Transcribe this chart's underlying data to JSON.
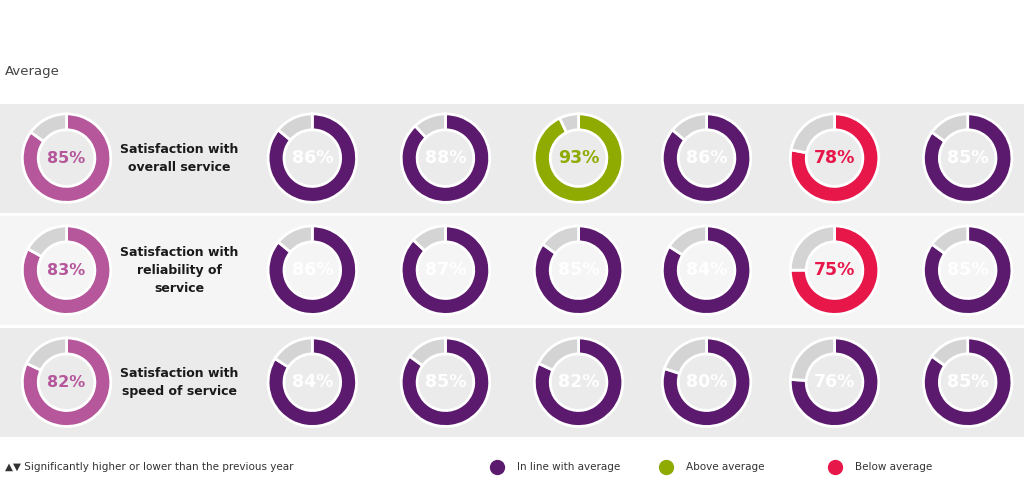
{
  "background_color": "#ffffff",
  "row_bg_colors": [
    "#ebebeb",
    "#f5f5f5",
    "#ebebeb"
  ],
  "row_labels": [
    "Satisfaction with\noverall service",
    "Satisfaction with\nreliability of\nservice",
    "Satisfaction with\nspeed of service"
  ],
  "data": [
    [
      85,
      86,
      88,
      93,
      86,
      78,
      85
    ],
    [
      83,
      86,
      87,
      85,
      84,
      75,
      85
    ],
    [
      82,
      84,
      85,
      82,
      80,
      76,
      85
    ]
  ],
  "colors": {
    "average_ring": "#b5579a",
    "average_text": "#b5579a",
    "inline": "#5b1a6e",
    "inline_text": "#ffffff",
    "above": "#8faa00",
    "above_text": "#8faa00",
    "below": "#e8174a",
    "below_text": "#e8174a",
    "remainder": "#d4d4d4"
  },
  "status": [
    [
      "average",
      "inline",
      "inline",
      "above",
      "inline",
      "below",
      "inline"
    ],
    [
      "average",
      "inline",
      "inline",
      "inline",
      "inline",
      "below",
      "inline"
    ],
    [
      "average",
      "inline",
      "inline",
      "inline",
      "inline",
      "inline",
      "inline"
    ]
  ],
  "legend_arrow_text": "▲▼ Significantly higher or lower than the previous year",
  "legend_items": [
    {
      "label": "In line with average",
      "color": "#5b1a6e"
    },
    {
      "label": "Above average",
      "color": "#8faa00"
    },
    {
      "label": "Below average",
      "color": "#e8174a"
    }
  ],
  "donut_width": 0.36
}
